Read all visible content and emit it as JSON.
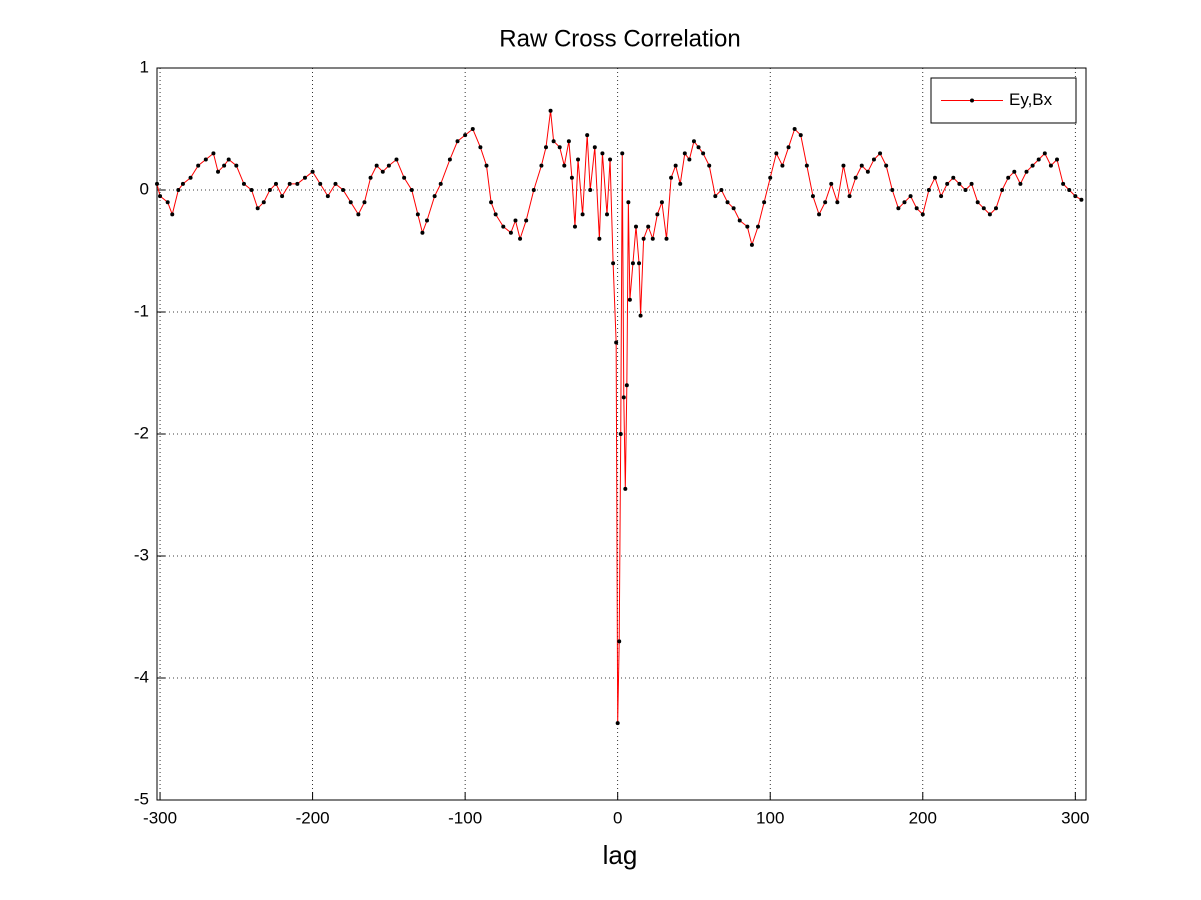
{
  "chart_data": {
    "type": "line",
    "title": "Raw Cross Correlation",
    "x_label": "lag",
    "x": [
      -302,
      -300,
      -295,
      -292,
      -288,
      -285,
      -280,
      -275,
      -270,
      -265,
      -262,
      -258,
      -255,
      -250,
      -245,
      -240,
      -236,
      -232,
      -228,
      -224,
      -220,
      -215,
      -210,
      -205,
      -200,
      -195,
      -190,
      -185,
      -180,
      -175,
      -170,
      -166,
      -162,
      -158,
      -154,
      -150,
      -145,
      -140,
      -135,
      -131,
      -128,
      -125,
      -120,
      -116,
      -110,
      -105,
      -100,
      -95,
      -90,
      -86,
      -83,
      -80,
      -75,
      -70,
      -67,
      -64,
      -60,
      -55,
      -50,
      -47,
      -44,
      -42,
      -38,
      -35,
      -32,
      -30,
      -28,
      -26,
      -23,
      -20,
      -18,
      -15,
      -12,
      -10,
      -7,
      -5,
      -3,
      -1,
      0,
      1,
      2,
      3,
      4,
      5,
      6,
      7,
      8,
      10,
      12,
      14,
      15,
      17,
      20,
      23,
      26,
      29,
      32,
      35,
      38,
      41,
      44,
      47,
      50,
      53,
      56,
      60,
      64,
      68,
      72,
      76,
      80,
      85,
      88,
      92,
      96,
      100,
      104,
      108,
      112,
      116,
      120,
      124,
      128,
      132,
      136,
      140,
      144,
      148,
      152,
      156,
      160,
      164,
      168,
      172,
      176,
      180,
      184,
      188,
      192,
      196,
      200,
      204,
      208,
      212,
      216,
      220,
      224,
      228,
      232,
      236,
      240,
      244,
      248,
      252,
      256,
      260,
      264,
      268,
      272,
      276,
      280,
      284,
      288,
      292,
      296,
      300,
      304
    ],
    "series": [
      {
        "name": "Ey,Bx",
        "color": "#ff0000",
        "marker_color": "#000000",
        "values": [
          0.05,
          -0.05,
          -0.1,
          -0.2,
          0,
          0.05,
          0.1,
          0.2,
          0.25,
          0.3,
          0.15,
          0.2,
          0.25,
          0.2,
          0.05,
          0.0,
          -0.15,
          -0.1,
          0.0,
          0.05,
          -0.05,
          0.05,
          0.05,
          0.1,
          0.15,
          0.05,
          -0.05,
          0.05,
          0.0,
          -0.1,
          -0.2,
          -0.1,
          0.1,
          0.2,
          0.15,
          0.2,
          0.25,
          0.1,
          0.0,
          -0.2,
          -0.35,
          -0.25,
          -0.05,
          0.05,
          0.25,
          0.4,
          0.45,
          0.5,
          0.35,
          0.2,
          -0.1,
          -0.2,
          -0.3,
          -0.35,
          -0.25,
          -0.4,
          -0.25,
          0.0,
          0.2,
          0.35,
          0.65,
          0.4,
          0.35,
          0.2,
          0.4,
          0.1,
          -0.3,
          0.25,
          -0.2,
          0.45,
          0.0,
          0.35,
          -0.4,
          0.3,
          -0.2,
          0.25,
          -0.6,
          -1.25,
          -4.37,
          -3.7,
          -2.0,
          0.3,
          -1.7,
          -2.45,
          -1.6,
          -0.1,
          -0.9,
          -0.6,
          -0.3,
          -0.6,
          -1.03,
          -0.4,
          -0.3,
          -0.4,
          -0.2,
          -0.1,
          -0.4,
          0.1,
          0.2,
          0.05,
          0.3,
          0.25,
          0.4,
          0.35,
          0.3,
          0.2,
          -0.05,
          0.0,
          -0.1,
          -0.15,
          -0.25,
          -0.3,
          -0.45,
          -0.3,
          -0.1,
          0.1,
          0.3,
          0.2,
          0.35,
          0.5,
          0.45,
          0.2,
          -0.05,
          -0.2,
          -0.1,
          0.05,
          -0.1,
          0.2,
          -0.05,
          0.1,
          0.2,
          0.15,
          0.25,
          0.3,
          0.2,
          0.0,
          -0.15,
          -0.1,
          -0.05,
          -0.15,
          -0.2,
          0.0,
          0.1,
          -0.05,
          0.05,
          0.1,
          0.05,
          0.0,
          0.05,
          -0.1,
          -0.15,
          -0.2,
          -0.15,
          0.0,
          0.1,
          0.15,
          0.05,
          0.15,
          0.2,
          0.25,
          0.3,
          0.2,
          0.25,
          0.05,
          0.0,
          -0.05,
          -0.08
        ]
      }
    ],
    "xlim": [
      -302,
      307
    ],
    "ylim": [
      -5,
      1
    ],
    "xticks": [
      -300,
      -200,
      -100,
      0,
      100,
      200,
      300
    ],
    "yticks": [
      1,
      0,
      -1,
      -2,
      -3,
      -4,
      -5
    ],
    "grid": true,
    "legend_position": "upper right"
  }
}
